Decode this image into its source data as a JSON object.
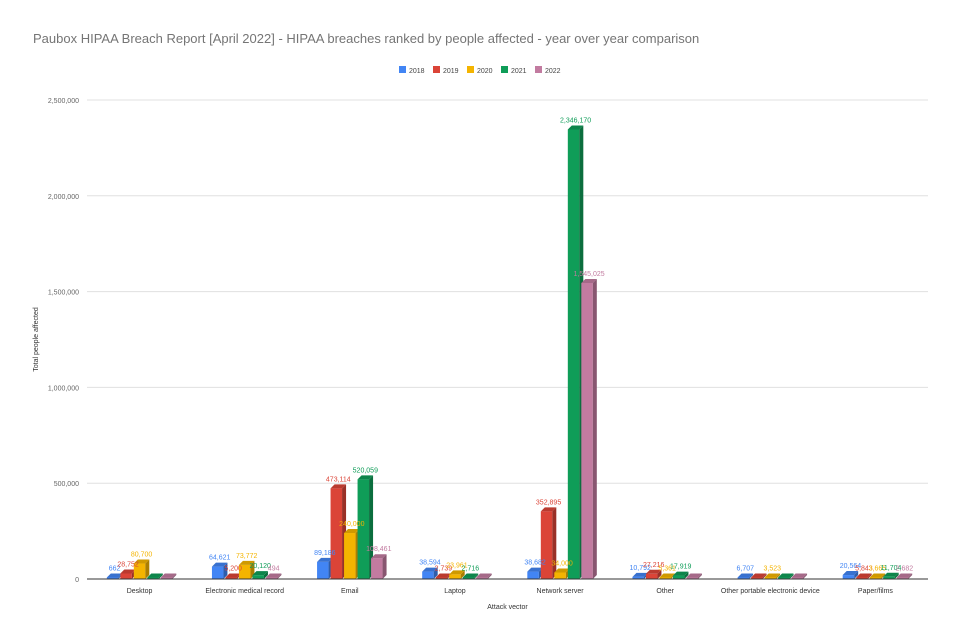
{
  "chart_data": {
    "type": "bar",
    "title": "Paubox HIPAA Breach Report [April 2022] - HIPAA breaches ranked by people affected - year over year comparison",
    "xlabel": "Attack vector",
    "ylabel": "Total people affected",
    "ylim": [
      0,
      2500000
    ],
    "yticks": [
      "0",
      "500,000",
      "1,000,000",
      "1,500,000",
      "2,000,000",
      "2,500,000"
    ],
    "ytick_values": [
      0,
      500000,
      1000000,
      1500000,
      2000000,
      2500000
    ],
    "grid": true,
    "legend_position": "top",
    "categories": [
      "Desktop",
      "Electronic medical record",
      "Email",
      "Laptop",
      "Network server",
      "Other",
      "Other portable electronic device",
      "Paper/films"
    ],
    "series": [
      {
        "name": "2018",
        "color": "#4285f4",
        "values": [
          662,
          64621,
          89186,
          38594,
          38682,
          10792,
          6707,
          20564
        ],
        "labels": [
          "662",
          "64,621",
          "89,186",
          "38,594",
          "38,682",
          "10,792",
          "6,707",
          "20,564"
        ]
      },
      {
        "name": "2019",
        "color": "#db4437",
        "values": [
          28752,
          5200,
          473114,
          2739,
          352895,
          27216,
          0,
          5843
        ],
        "labels": [
          "28,752",
          "5,200",
          "473,114",
          "2,739",
          "352,895",
          "27,216",
          "",
          "5,843"
        ]
      },
      {
        "name": "2020",
        "color": "#f4b400",
        "values": [
          80700,
          73772,
          240000,
          23961,
          34000,
          5361,
          3523,
          3665
        ],
        "labels": [
          "80,700",
          "73,772",
          "240,000",
          "23,961",
          "34,000",
          "5,361",
          "3,523",
          "3,665"
        ]
      },
      {
        "name": "2021",
        "color": "#0f9d58",
        "values": [
          0,
          20120,
          520059,
          2716,
          2346170,
          17919,
          0,
          11704
        ],
        "labels": [
          "",
          "20,120",
          "520,059",
          "2,716",
          "2,346,170",
          "17,919",
          "",
          "11,704"
        ]
      },
      {
        "name": "2022",
        "color": "#c27ba0",
        "values": [
          0,
          494,
          108461,
          0,
          1545025,
          0,
          0,
          2682
        ],
        "labels": [
          "",
          "494",
          "108,461",
          "",
          "1,545,025",
          "",
          "",
          "2,682"
        ]
      }
    ]
  }
}
